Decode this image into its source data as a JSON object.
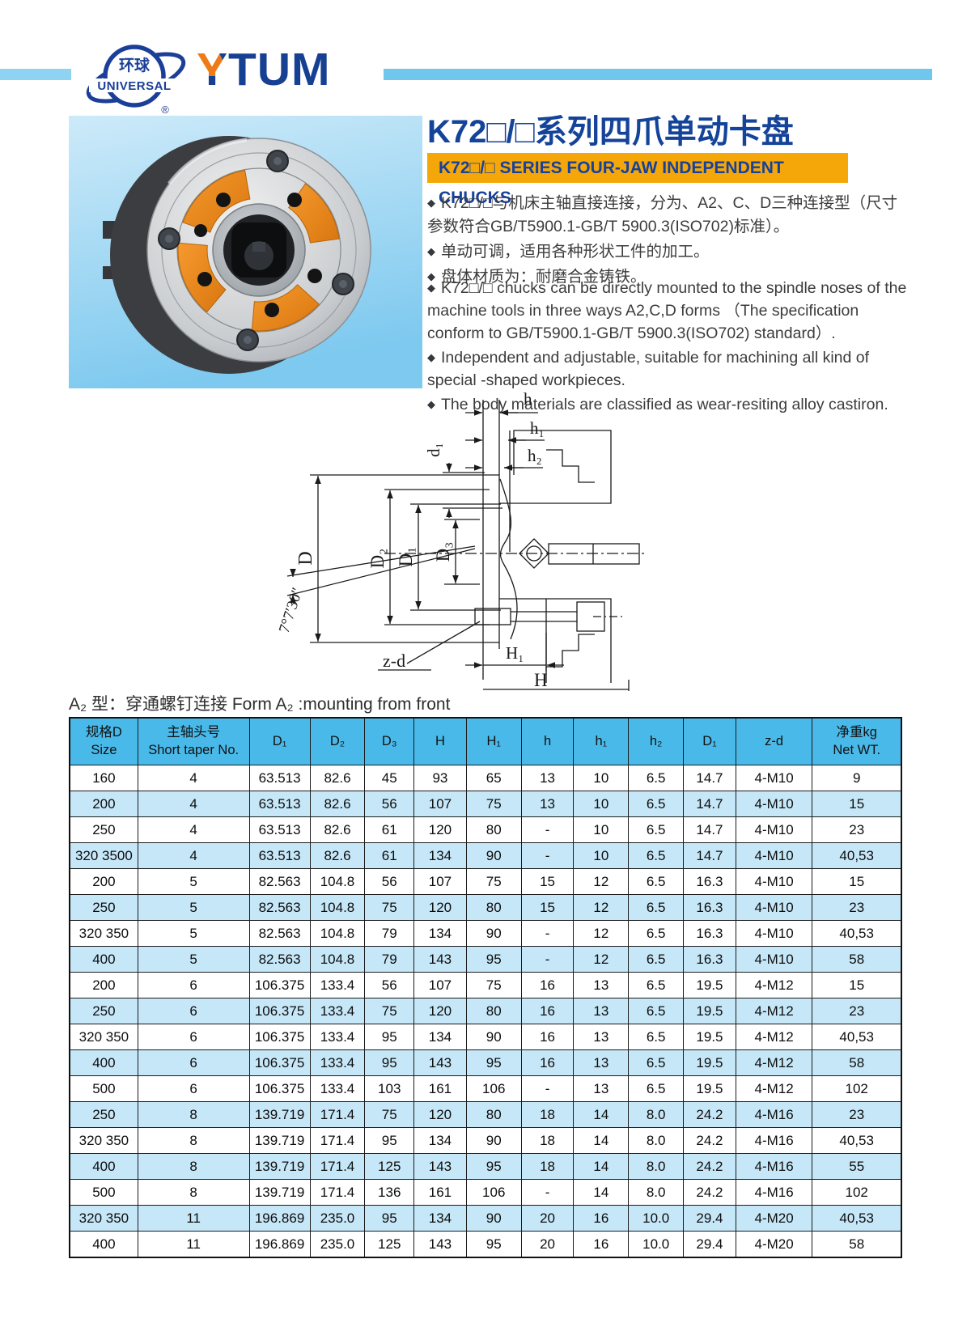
{
  "brand": {
    "logo_zh": "环球",
    "logo_en": "UNIVERSAL",
    "reg": "®",
    "wordmark": "YTUM"
  },
  "title": {
    "zh": "K72□/□系列四爪单动卡盘",
    "banner_en": "K72□/□ SERIES FOUR-JAW INDEPENDENT CHUCKS"
  },
  "bullet_marker": "◆",
  "bullets_zh": [
    "K72□/□与机床主轴直接连接，分为、A2、C、D三种连接型（尺寸参数符合GB/T5900.1-GB/T 5900.3(ISO702)标准）。",
    "单动可调，适用各种形状工件的加工。",
    "盘体材质为：耐磨合金铸铁。"
  ],
  "bullets_en": [
    "K72□/□ chucks can be directly mounted to the spindle noses of the machine tools in three ways A2,C,D forms （The specification conform to GB/T5900.1-GB/T 5900.3(ISO702) standard）.",
    "Independent and adjustable, suitable for machining all kind of special -shaped workpieces.",
    "The body materials are classified as wear-resiting alloy castiron."
  ],
  "diagram": {
    "labels": {
      "h": "h",
      "h1": "h₁",
      "h2": "h₂",
      "d1": "d₁",
      "D": "D",
      "D2": "D₂",
      "D1": "D₁",
      "D3": "D₃",
      "angle": "7°7′30″",
      "zd": "z-d",
      "H1": "H₁",
      "H": "H"
    }
  },
  "table": {
    "caption": "A₂ 型：穿通螺钉连接 Form A₂ :mounting from front",
    "headers": [
      "规格D\nSize",
      "主轴头号\nShort taper No.",
      "D₁",
      "D₂",
      "D₃",
      "H",
      "H₁",
      "h",
      "h₁",
      "h₂",
      "D₁",
      "z-d",
      "净重kg\nNet WT."
    ],
    "rows": [
      [
        "160",
        "4",
        "63.513",
        "82.6",
        "45",
        "93",
        "65",
        "13",
        "10",
        "6.5",
        "14.7",
        "4-M10",
        "9"
      ],
      [
        "200",
        "4",
        "63.513",
        "82.6",
        "56",
        "107",
        "75",
        "13",
        "10",
        "6.5",
        "14.7",
        "4-M10",
        "15"
      ],
      [
        "250",
        "4",
        "63.513",
        "82.6",
        "61",
        "120",
        "80",
        "-",
        "10",
        "6.5",
        "14.7",
        "4-M10",
        "23"
      ],
      [
        "320 3500",
        "4",
        "63.513",
        "82.6",
        "61",
        "134",
        "90",
        "-",
        "10",
        "6.5",
        "14.7",
        "4-M10",
        "40,53"
      ],
      [
        "200",
        "5",
        "82.563",
        "104.8",
        "56",
        "107",
        "75",
        "15",
        "12",
        "6.5",
        "16.3",
        "4-M10",
        "15"
      ],
      [
        "250",
        "5",
        "82.563",
        "104.8",
        "75",
        "120",
        "80",
        "15",
        "12",
        "6.5",
        "16.3",
        "4-M10",
        "23"
      ],
      [
        "320 350",
        "5",
        "82.563",
        "104.8",
        "79",
        "134",
        "90",
        "-",
        "12",
        "6.5",
        "16.3",
        "4-M10",
        "40,53"
      ],
      [
        "400",
        "5",
        "82.563",
        "104.8",
        "79",
        "143",
        "95",
        "-",
        "12",
        "6.5",
        "16.3",
        "4-M10",
        "58"
      ],
      [
        "200",
        "6",
        "106.375",
        "133.4",
        "56",
        "107",
        "75",
        "16",
        "13",
        "6.5",
        "19.5",
        "4-M12",
        "15"
      ],
      [
        "250",
        "6",
        "106.375",
        "133.4",
        "75",
        "120",
        "80",
        "16",
        "13",
        "6.5",
        "19.5",
        "4-M12",
        "23"
      ],
      [
        "320 350",
        "6",
        "106.375",
        "133.4",
        "95",
        "134",
        "90",
        "16",
        "13",
        "6.5",
        "19.5",
        "4-M12",
        "40,53"
      ],
      [
        "400",
        "6",
        "106.375",
        "133.4",
        "95",
        "143",
        "95",
        "16",
        "13",
        "6.5",
        "19.5",
        "4-M12",
        "58"
      ],
      [
        "500",
        "6",
        "106.375",
        "133.4",
        "103",
        "161",
        "106",
        "-",
        "13",
        "6.5",
        "19.5",
        "4-M12",
        "102"
      ],
      [
        "250",
        "8",
        "139.719",
        "171.4",
        "75",
        "120",
        "80",
        "18",
        "14",
        "8.0",
        "24.2",
        "4-M16",
        "23"
      ],
      [
        "320 350",
        "8",
        "139.719",
        "171.4",
        "95",
        "134",
        "90",
        "18",
        "14",
        "8.0",
        "24.2",
        "4-M16",
        "40,53"
      ],
      [
        "400",
        "8",
        "139.719",
        "171.4",
        "125",
        "143",
        "95",
        "18",
        "14",
        "8.0",
        "24.2",
        "4-M16",
        "55"
      ],
      [
        "500",
        "8",
        "139.719",
        "171.4",
        "136",
        "161",
        "106",
        "-",
        "14",
        "8.0",
        "24.2",
        "4-M16",
        "102"
      ],
      [
        "320 350",
        "11",
        "196.869",
        "235.0",
        "95",
        "134",
        "90",
        "20",
        "16",
        "10.0",
        "29.4",
        "4-M20",
        "40,53"
      ],
      [
        "400",
        "11",
        "196.869",
        "235.0",
        "125",
        "143",
        "95",
        "20",
        "16",
        "10.0",
        "29.4",
        "4-M20",
        "58"
      ]
    ]
  },
  "colors": {
    "brand_blue": "#17419A",
    "banner_orange": "#F5A70A",
    "y_accent_orange": "#EE7B17",
    "header_bar_blue": "#7CCBEF",
    "table_header_blue": "#49B9E9",
    "row_stripe_blue": "#C6E7F8",
    "sector_orange": "#E8891F"
  }
}
